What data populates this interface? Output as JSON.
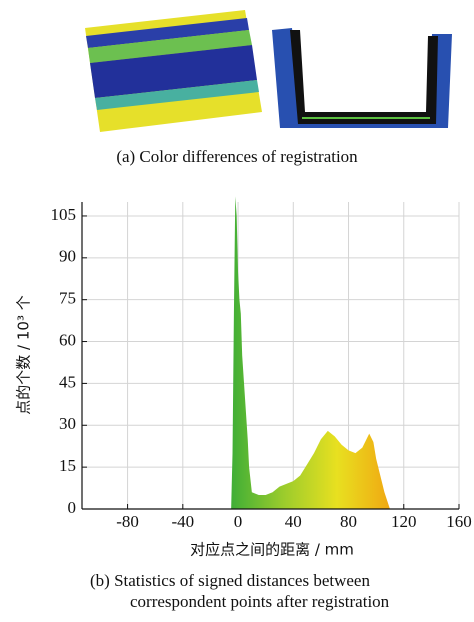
{
  "caption_a": "(a)  Color differences of registration",
  "caption_b": [
    "(b)  Statistics of signed distances between",
    "correspondent points after registration"
  ],
  "chart_data": {
    "type": "area",
    "ylabel": "点的个数 / 10³ 个",
    "xlabel": "对应点之间的距离 / mm",
    "x": [
      -5,
      -4,
      -3,
      -2,
      -1,
      0,
      1,
      2,
      3,
      5,
      7,
      8,
      10,
      15,
      20,
      25,
      30,
      35,
      40,
      45,
      50,
      55,
      60,
      65,
      70,
      75,
      80,
      85,
      90,
      95,
      98,
      100,
      103,
      106,
      110
    ],
    "values": [
      0,
      20,
      70,
      112,
      105,
      85,
      75,
      70,
      55,
      40,
      25,
      15,
      6,
      5,
      5,
      6,
      8,
      9,
      10,
      12,
      16,
      20,
      25,
      28,
      26,
      23,
      21,
      20,
      22,
      27,
      24,
      18,
      12,
      6,
      0
    ],
    "gradient": [
      "#3fae36",
      "#9ccc2c",
      "#e8e020",
      "#f0a812"
    ],
    "xlim": [
      -113,
      160
    ],
    "ylim": [
      0,
      110
    ],
    "xticks": [
      -80,
      -40,
      0,
      40,
      80,
      120,
      160
    ],
    "yticks": [
      0,
      15,
      30,
      45,
      60,
      75,
      90,
      105
    ],
    "grid": true
  }
}
